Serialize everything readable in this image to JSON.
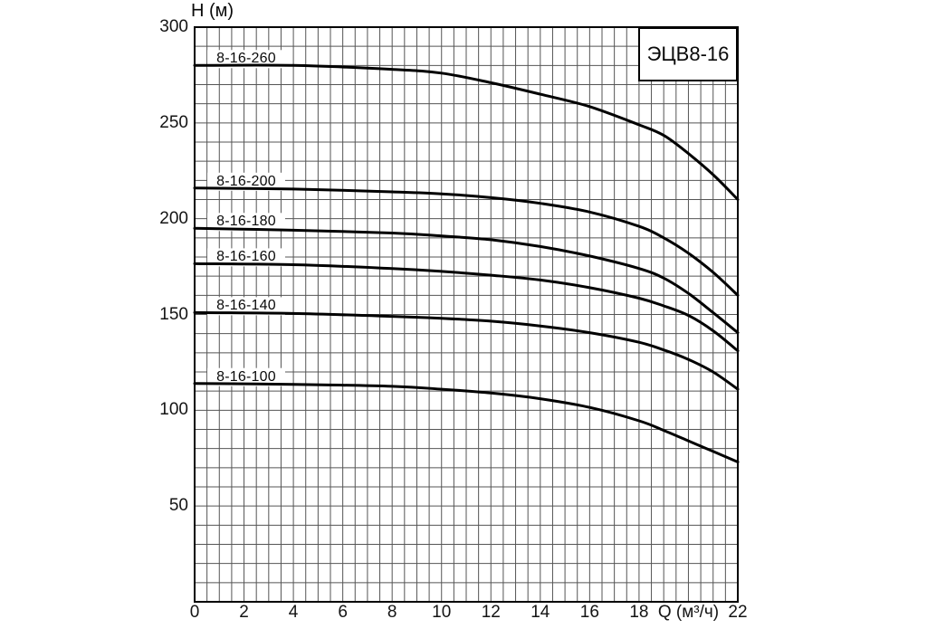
{
  "chart_data": {
    "type": "line",
    "title": "ЭЦВ8-16",
    "ylabel": "H (м)",
    "xlabel": "Q (м³/ч)",
    "xlim": [
      0,
      22
    ],
    "ylim": [
      0,
      300
    ],
    "x_minor_step": 0.5,
    "y_minor_step": 10,
    "grid": true,
    "legend_position": "labels-above-curves-left",
    "y_ticks": [
      300,
      250,
      200,
      150,
      100,
      50
    ],
    "x_ticks": [
      0,
      2,
      4,
      6,
      8,
      10,
      12,
      14,
      16,
      18,
      22
    ],
    "xlabel_slot": 20,
    "x": [
      0,
      4,
      8,
      10,
      12,
      14,
      16,
      18,
      19,
      20,
      21,
      22
    ],
    "series": [
      {
        "name": "8-16-260",
        "values": [
          280,
          280,
          278,
          276,
          271,
          265,
          258.5,
          249,
          243.5,
          234,
          223,
          210
        ]
      },
      {
        "name": "8-16-200",
        "values": [
          216,
          215.5,
          214,
          213,
          211,
          208,
          203.5,
          196,
          190,
          182,
          172,
          160
        ]
      },
      {
        "name": "8-16-180",
        "values": [
          195,
          194,
          192.5,
          191,
          189,
          185.5,
          180.5,
          174,
          169,
          161,
          151,
          140.5
        ]
      },
      {
        "name": "8-16-160",
        "values": [
          176.5,
          176,
          174,
          172.5,
          170.5,
          168,
          164,
          158.5,
          154.5,
          149.5,
          141.5,
          131
        ]
      },
      {
        "name": "8-16-140",
        "values": [
          151,
          150.5,
          149,
          148,
          146.5,
          144,
          140.5,
          135.5,
          131.5,
          126.5,
          120,
          111
        ]
      },
      {
        "name": "8-16-100",
        "values": [
          114,
          113.5,
          112.5,
          111,
          109,
          106,
          101.5,
          94.5,
          89.5,
          84,
          78.5,
          73
        ]
      }
    ]
  },
  "colors": {
    "curve": "#000000",
    "grid": "#555555",
    "axis": "#000000",
    "background": "#ffffff",
    "text": "#111111"
  }
}
